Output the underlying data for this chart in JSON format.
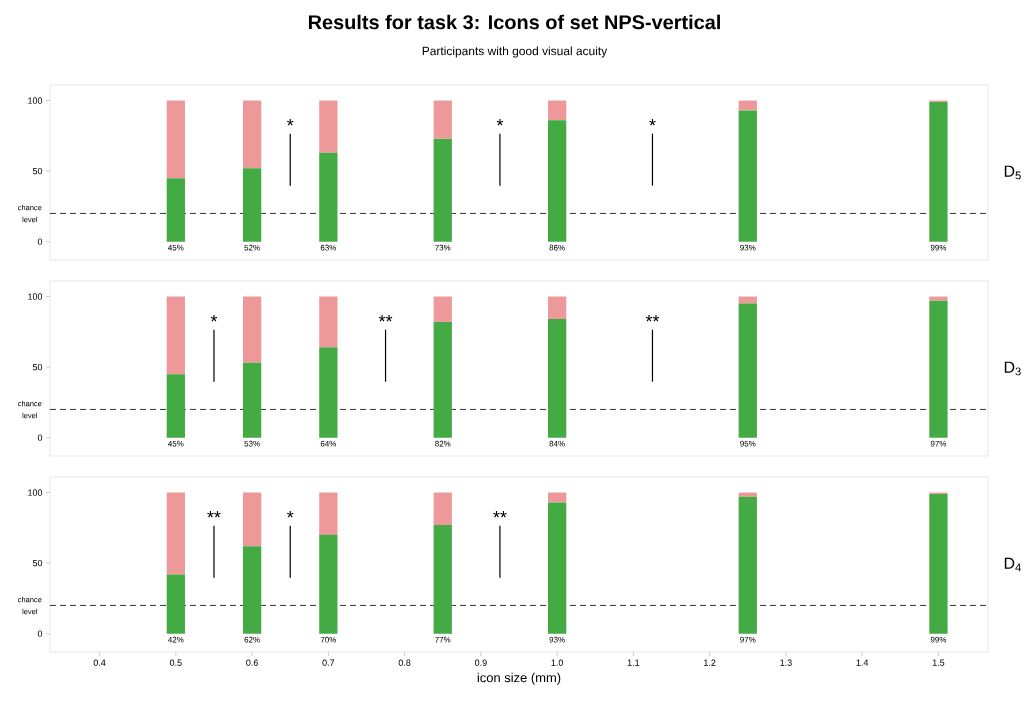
{
  "chart_data": [
    {
      "type": "bar",
      "title": "Results for task 3: Icons of set NPS-vertical",
      "subtitle": "Participants with good visual acuity",
      "ylabel": "D$_{5}$",
      "stacked": true,
      "tick_labels": "y",
      "x": [
        0.5,
        0.6,
        0.7,
        0.85,
        1.0,
        1.25,
        1.5
      ],
      "series": [
        {
          "color": "#44aa44",
          "values": [
            45,
            52,
            63,
            73,
            86,
            93,
            99
          ],
          "value_labels": [
            "45%",
            "52%",
            "63%",
            "73%",
            "86%",
            "93%",
            "99%"
          ]
        },
        {
          "color": "#ee9999",
          "values": [
            55,
            48,
            37,
            27,
            14,
            7,
            1
          ]
        }
      ],
      "xlim": [
        0.335,
        1.565
      ],
      "ylim": [
        -13,
        111
      ],
      "yticks": [
        0,
        50,
        100
      ],
      "ref_lines": [
        {
          "axis": "y",
          "value": 20,
          "label": "chance level",
          "line_style": "dashed",
          "color": "#000000"
        }
      ],
      "annotations": [
        "*",
        "*",
        "*"
      ]
    },
    {
      "type": "bar",
      "ylabel": "D$_{3}$",
      "stacked": true,
      "tick_labels": "y",
      "x": [
        0.5,
        0.6,
        0.7,
        0.85,
        1.0,
        1.25,
        1.5
      ],
      "series": [
        {
          "color": "#44aa44",
          "values": [
            45,
            53,
            64,
            82,
            84,
            95,
            97
          ],
          "value_labels": [
            "45%",
            "53%",
            "64%",
            "82%",
            "84%",
            "95%",
            "97%"
          ]
        },
        {
          "color": "#ee9999",
          "values": [
            55,
            47,
            36,
            18,
            16,
            5,
            3
          ]
        }
      ],
      "xlim": [
        0.335,
        1.565
      ],
      "ylim": [
        -13,
        111
      ],
      "yticks": [
        0,
        50,
        100
      ],
      "ref_lines": [
        {
          "axis": "y",
          "value": 20,
          "label": "chance level",
          "line_style": "dashed",
          "color": "#000000"
        }
      ],
      "annotations": [
        "*",
        "**",
        "**"
      ]
    },
    {
      "type": "bar",
      "ylabel": "D$_{4}$",
      "xlabel": "icon size (mm)",
      "stacked": true,
      "x": [
        0.5,
        0.6,
        0.7,
        0.85,
        1.0,
        1.25,
        1.5
      ],
      "series": [
        {
          "color": "#44aa44",
          "values": [
            42,
            62,
            70,
            77,
            93,
            97,
            99
          ],
          "value_labels": [
            "42%",
            "62%",
            "70%",
            "77%",
            "93%",
            "97%",
            "99%"
          ]
        },
        {
          "color": "#ee9999",
          "values": [
            58,
            38,
            30,
            23,
            7,
            3,
            1
          ]
        }
      ],
      "xlim": [
        0.335,
        1.565
      ],
      "ylim": [
        -13,
        111
      ],
      "yticks": [
        0,
        50,
        100
      ],
      "xticks": [
        0.4,
        0.5,
        0.6,
        0.7,
        0.8,
        0.9,
        {
          "value": 1,
          "label": "1.0"
        },
        1.1,
        1.2,
        1.3,
        1.4,
        1.5
      ],
      "ref_lines": [
        {
          "axis": "y",
          "value": 20,
          "label": "chance level",
          "line_style": "dashed",
          "color": "#000000"
        }
      ],
      "annotations": [
        "**",
        "*",
        "**"
      ]
    }
  ]
}
